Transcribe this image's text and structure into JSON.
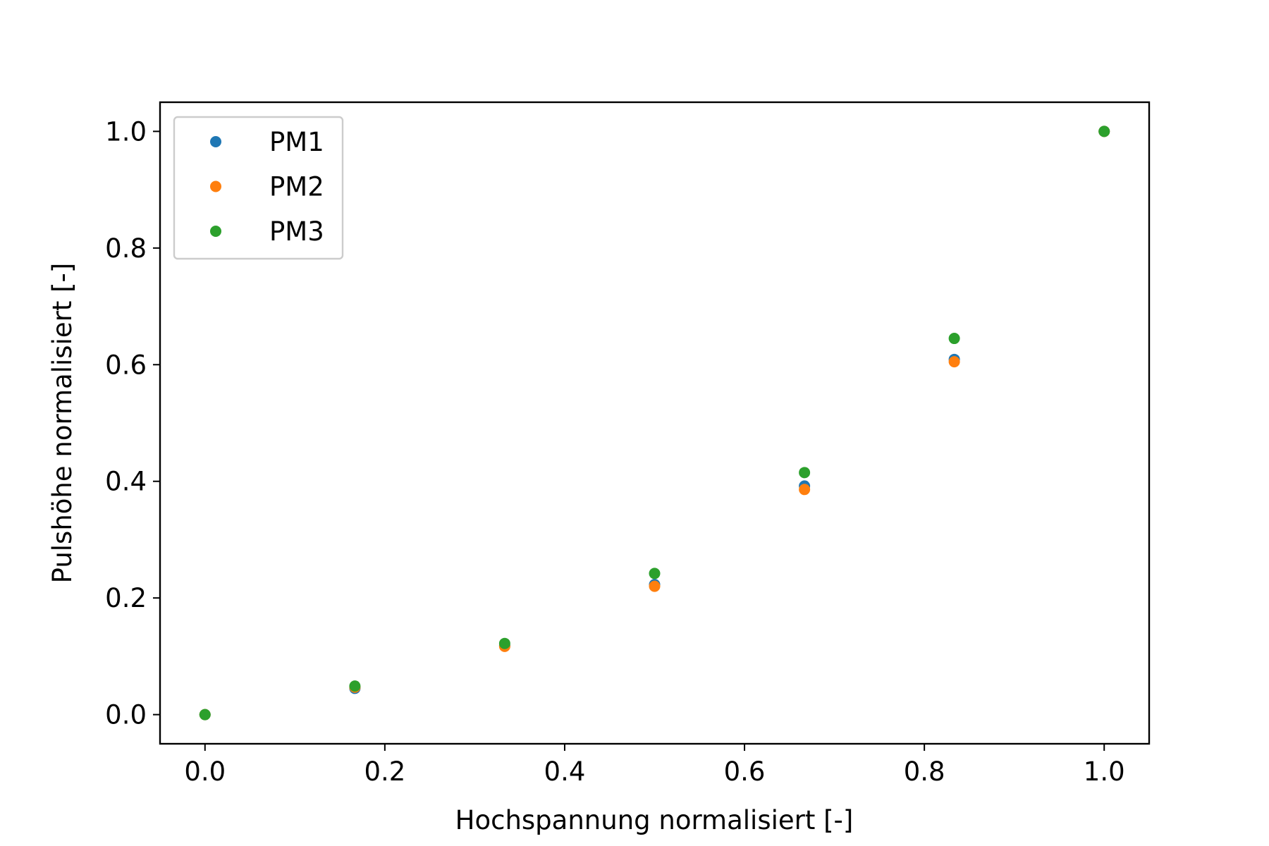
{
  "chart_data": {
    "type": "scatter",
    "title": "",
    "xlabel": "Hochspannung normalisiert [-]",
    "ylabel": "Pulshöhe normalisiert [-]",
    "xlim": [
      -0.05,
      1.05
    ],
    "ylim": [
      -0.05,
      1.05
    ],
    "xticks": [
      0.0,
      0.2,
      0.4,
      0.6,
      0.8,
      1.0
    ],
    "yticks": [
      0.0,
      0.2,
      0.4,
      0.6,
      0.8,
      1.0
    ],
    "xtick_labels": [
      "0.0",
      "0.2",
      "0.4",
      "0.6",
      "0.8",
      "1.0"
    ],
    "ytick_labels": [
      "0.0",
      "0.2",
      "0.4",
      "0.6",
      "0.8",
      "1.0"
    ],
    "grid": false,
    "legend_position": "top-left",
    "series": [
      {
        "name": "PM1",
        "color": "#1f77b4",
        "x": [
          0.0,
          0.1667,
          0.3333,
          0.5,
          0.6667,
          0.8333,
          1.0
        ],
        "y": [
          0.0,
          0.045,
          0.118,
          0.223,
          0.392,
          0.609,
          1.0
        ]
      },
      {
        "name": "PM2",
        "color": "#ff7f0e",
        "x": [
          0.0,
          0.1667,
          0.3333,
          0.5,
          0.6667,
          0.8333,
          1.0
        ],
        "y": [
          0.0,
          0.047,
          0.117,
          0.22,
          0.386,
          0.605,
          1.0
        ]
      },
      {
        "name": "PM3",
        "color": "#2ca02c",
        "x": [
          0.0,
          0.1667,
          0.3333,
          0.5,
          0.6667,
          0.8333,
          1.0
        ],
        "y": [
          0.0,
          0.049,
          0.122,
          0.242,
          0.415,
          0.645,
          1.0
        ]
      }
    ]
  }
}
